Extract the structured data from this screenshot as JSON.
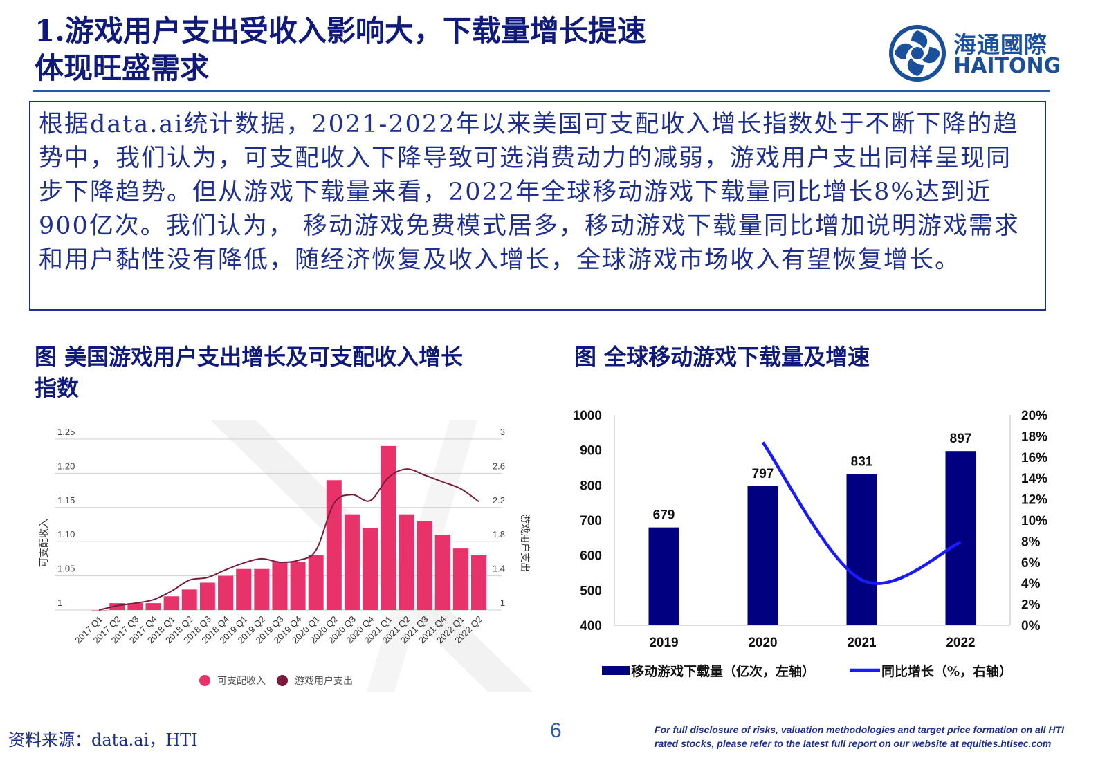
{
  "title": {
    "line1": "1.游戏用户支出受收入影响大，下载量增长提速",
    "line2": "体现旺盛需求"
  },
  "logo": {
    "cn": "海通國際",
    "en": "HAITONG"
  },
  "body_text": "根据data.ai统计数据，2021-2022年以来美国可支配收入增长指数处于不断下降的趋势中，我们认为，可支配收入下降导致可选消费动力的减弱，游戏用户支出同样呈现同步下降趋势。但从游戏下载量来看，2022年全球移动游戏下载量同比增长8%达到近900亿次。我们认为， 移动游戏免费模式居多，移动游戏下载量同比增加说明游戏需求和用户黏性没有降低，随经济恢复及收入增长，全球游戏市场收入有望恢复增长。",
  "captions": {
    "left_line1": "图 美国游戏用户支出增长及可支配收入增长",
    "left_line2": "指数",
    "right": "图 全球移动游戏下载量及增速"
  },
  "colors": {
    "title": "#0f1a7a",
    "left_bar": "#e8336a",
    "left_line": "#7a1a3c",
    "right_bar": "#000080",
    "right_line": "#1a1aff"
  },
  "chart_data": [
    {
      "type": "bar",
      "categories": [
        "2017 Q1",
        "2017 Q2",
        "2017 Q3",
        "2017 Q4",
        "2018 Q1",
        "2018 Q2",
        "2018 Q3",
        "2018 Q4",
        "2019 Q1",
        "2019 Q2",
        "2019 Q3",
        "2019 Q4",
        "2020 Q1",
        "2020 Q2",
        "2020 Q3",
        "2020 Q4",
        "2021 Q1",
        "2021 Q2",
        "2021 Q3",
        "2021 Q4",
        "2022 Q1",
        "2022 Q2"
      ],
      "series": [
        {
          "name": "可支配收入",
          "kind": "bar",
          "axis": "left",
          "values": [
            1.0,
            1.01,
            1.01,
            1.01,
            1.02,
            1.03,
            1.04,
            1.05,
            1.06,
            1.06,
            1.07,
            1.07,
            1.08,
            1.19,
            1.14,
            1.12,
            1.24,
            1.14,
            1.13,
            1.11,
            1.09,
            1.08
          ]
        },
        {
          "name": "游戏用户支出",
          "kind": "line",
          "axis": "right",
          "values": [
            1.0,
            1.05,
            1.08,
            1.12,
            1.22,
            1.35,
            1.38,
            1.47,
            1.55,
            1.6,
            1.56,
            1.58,
            1.7,
            2.25,
            2.35,
            2.28,
            2.55,
            2.65,
            2.58,
            2.5,
            2.42,
            2.27
          ]
        }
      ],
      "yleft": {
        "label": "可支配收入",
        "ticks": [
          "1",
          "1.05",
          "1.10",
          "1.15",
          "1.20",
          "1.25"
        ],
        "lim": [
          1,
          1.25
        ]
      },
      "yright": {
        "label": "游戏用户支出",
        "ticks": [
          "1",
          "1.4",
          "1.8",
          "2.2",
          "2.6",
          "3"
        ],
        "lim": [
          1,
          3
        ]
      },
      "legend": "bottom-center"
    },
    {
      "type": "bar",
      "categories": [
        "2019",
        "2020",
        "2021",
        "2022"
      ],
      "series": [
        {
          "name": "移动游戏下载量（亿次，左轴）",
          "kind": "bar",
          "axis": "left",
          "values": [
            679,
            797,
            831,
            897
          ],
          "labels": [
            "679",
            "797",
            "831",
            "897"
          ]
        },
        {
          "name": "同比增长（%，右轴）",
          "kind": "line",
          "axis": "right",
          "values": [
            null,
            17.4,
            4.3,
            7.9
          ]
        }
      ],
      "yleft": {
        "ticks": [
          "400",
          "500",
          "600",
          "700",
          "800",
          "900",
          "1000"
        ],
        "lim": [
          400,
          1000
        ]
      },
      "yright": {
        "ticks": [
          "0%",
          "2%",
          "4%",
          "6%",
          "8%",
          "10%",
          "12%",
          "14%",
          "16%",
          "18%",
          "20%"
        ],
        "lim": [
          0,
          20
        ]
      },
      "legend": "bottom-center"
    }
  ],
  "footer": {
    "source": "资料来源：data.ai，HTI",
    "page": "6",
    "disclaimer": "For full disclosure of risks, valuation methodologies and target price formation on all HTI rated stocks, please refer to the latest full report on our website at ",
    "link": "equities.htisec.com"
  }
}
